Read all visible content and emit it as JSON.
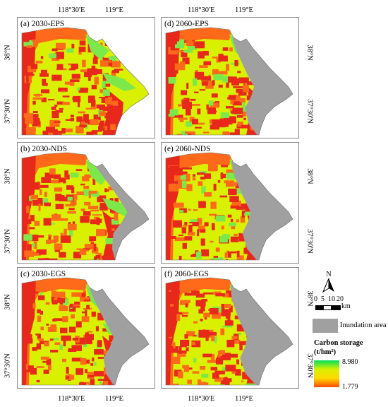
{
  "axes": {
    "top_lon": [
      "118°30'E",
      "119°E"
    ],
    "bottom_lon": [
      "118°30'E",
      "119°E"
    ],
    "lat": [
      "38°N",
      "37°30'N"
    ]
  },
  "panels": [
    {
      "id": "a",
      "title": "(a) 2030-EPS",
      "inundation": 0.0
    },
    {
      "id": "d",
      "title": "(d) 2060-EPS",
      "inundation": 0.65
    },
    {
      "id": "b",
      "title": "(b) 2030-NDS",
      "inundation": 0.15
    },
    {
      "id": "e",
      "title": "(e) 2060-NDS",
      "inundation": 0.75
    },
    {
      "id": "c",
      "title": "(c) 2030-EGS",
      "inundation": 0.55
    },
    {
      "id": "f",
      "title": "(f) 2060-EGS",
      "inundation": 0.85
    }
  ],
  "north_arrow": {
    "label": "N"
  },
  "scale_bar": {
    "labels": [
      "0",
      "5",
      "10",
      "20"
    ],
    "unit": "km"
  },
  "legend": {
    "inundation_label": "Inundation area",
    "inundation_color": "#a0a0a0",
    "carbon_title_line1": "Carbon storage",
    "carbon_title_line2": "(t/hm²)",
    "max_value": "8.980",
    "min_value": "1.779",
    "gradient_colors": [
      "#00e05a",
      "#d8f000",
      "#ffd800",
      "#ff4800"
    ]
  },
  "colors": {
    "red": "#e8281a",
    "orange": "#ff6a1a",
    "yellow": "#d9f000",
    "green": "#7de84a",
    "gray": "#a0a0a0"
  }
}
